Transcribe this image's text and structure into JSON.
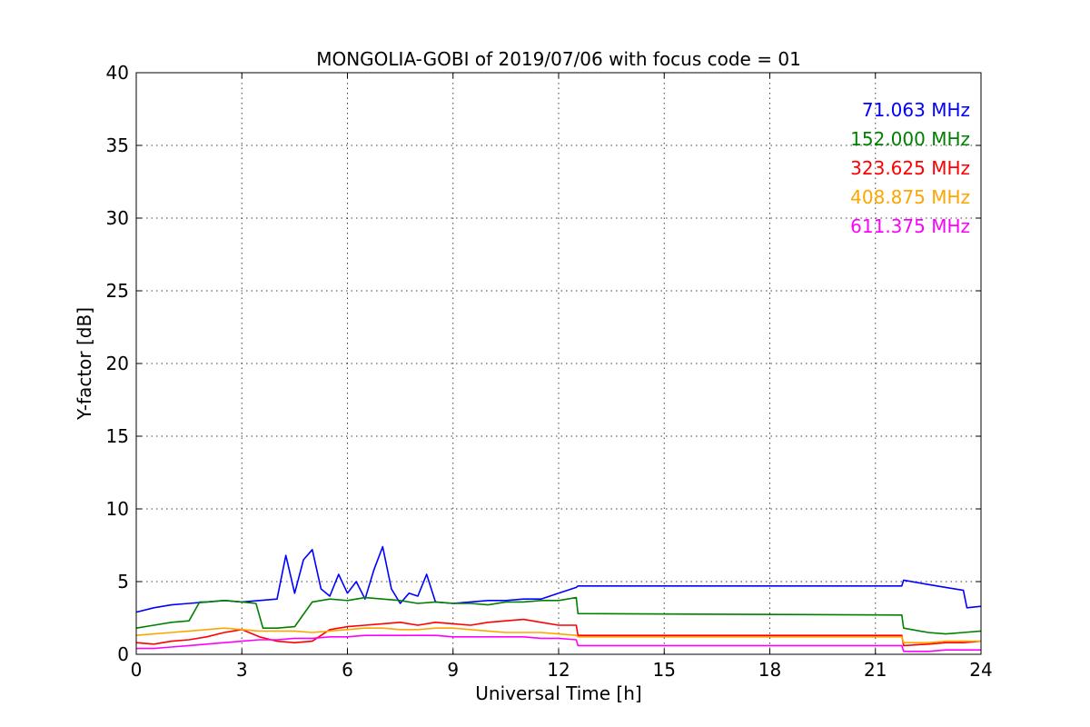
{
  "chart_data": {
    "type": "line",
    "title": "MONGOLIA-GOBI of 2019/07/06 with focus code = 01",
    "xlabel": "Universal Time [h]",
    "ylabel": "Y-factor [dB]",
    "xlim": [
      0,
      24
    ],
    "ylim": [
      0,
      40
    ],
    "xticks": [
      "0",
      "3",
      "6",
      "9",
      "12",
      "15",
      "18",
      "21",
      "24"
    ],
    "yticks": [
      "0",
      "5",
      "10",
      "15",
      "20",
      "25",
      "30",
      "35",
      "40"
    ],
    "grid": true,
    "legend_position": "top-right",
    "series": [
      {
        "name": "71.063 MHz",
        "color": "#0000ff",
        "x": [
          0,
          0.5,
          1,
          1.5,
          2,
          2.5,
          3,
          3.5,
          4,
          4.25,
          4.5,
          4.75,
          5,
          5.25,
          5.5,
          5.75,
          6,
          6.25,
          6.5,
          6.75,
          7,
          7.25,
          7.5,
          7.75,
          8,
          8.25,
          8.5,
          9,
          9.5,
          10,
          10.5,
          11,
          11.5,
          12,
          12.5,
          12.55,
          21.75,
          21.8,
          22.5,
          23,
          23.5,
          23.6,
          24
        ],
        "y": [
          2.9,
          3.2,
          3.4,
          3.5,
          3.6,
          3.7,
          3.6,
          3.7,
          3.8,
          6.8,
          4.2,
          6.5,
          7.2,
          4.5,
          4.0,
          5.5,
          4.2,
          5.0,
          3.8,
          5.8,
          7.4,
          4.5,
          3.5,
          4.2,
          4.0,
          5.5,
          3.6,
          3.5,
          3.6,
          3.7,
          3.7,
          3.8,
          3.8,
          4.2,
          4.6,
          4.7,
          4.7,
          5.1,
          4.8,
          4.6,
          4.4,
          3.2,
          3.3
        ]
      },
      {
        "name": "152.000 MHz",
        "color": "#008000",
        "x": [
          0,
          0.5,
          1,
          1.5,
          1.8,
          2,
          2.5,
          3,
          3.4,
          3.6,
          4,
          4.5,
          5,
          5.5,
          6,
          6.5,
          7,
          7.5,
          8,
          8.5,
          9,
          9.5,
          10,
          10.5,
          11,
          11.5,
          12,
          12.5,
          12.55,
          21.75,
          21.8,
          22.5,
          23,
          23.5,
          24
        ],
        "y": [
          1.8,
          2.0,
          2.2,
          2.3,
          3.6,
          3.6,
          3.7,
          3.6,
          3.5,
          1.8,
          1.8,
          1.9,
          3.6,
          3.8,
          3.7,
          3.9,
          3.8,
          3.7,
          3.5,
          3.6,
          3.5,
          3.5,
          3.4,
          3.6,
          3.6,
          3.7,
          3.7,
          3.9,
          2.8,
          2.7,
          1.8,
          1.5,
          1.4,
          1.5,
          1.6
        ]
      },
      {
        "name": "323.625 MHz",
        "color": "#ff0000",
        "x": [
          0,
          0.5,
          1,
          1.5,
          2,
          2.5,
          3,
          3.5,
          4,
          4.5,
          5,
          5.5,
          6,
          6.5,
          7,
          7.5,
          8,
          8.5,
          9,
          9.5,
          10,
          10.5,
          11,
          11.5,
          12,
          12.5,
          12.55,
          21.75,
          21.8,
          22.5,
          23,
          23.5,
          24
        ],
        "y": [
          0.8,
          0.7,
          0.9,
          1.0,
          1.2,
          1.5,
          1.7,
          1.2,
          0.9,
          0.8,
          0.9,
          1.7,
          1.9,
          2.0,
          2.1,
          2.2,
          2.0,
          2.2,
          2.1,
          2.0,
          2.2,
          2.3,
          2.4,
          2.2,
          2.0,
          2.0,
          1.3,
          1.3,
          0.6,
          0.7,
          0.8,
          0.8,
          0.9
        ]
      },
      {
        "name": "408.875 MHz",
        "color": "#ffa500",
        "x": [
          0,
          0.5,
          1,
          1.5,
          2,
          2.5,
          3,
          3.5,
          4,
          4.5,
          5,
          5.5,
          6,
          6.5,
          7,
          7.5,
          8,
          8.5,
          9,
          9.5,
          10,
          10.5,
          11,
          11.5,
          12,
          12.5,
          12.55,
          21.75,
          21.8,
          22.5,
          23,
          23.5,
          24
        ],
        "y": [
          1.3,
          1.4,
          1.5,
          1.6,
          1.7,
          1.8,
          1.7,
          1.6,
          1.6,
          1.6,
          1.5,
          1.6,
          1.7,
          1.8,
          1.8,
          1.7,
          1.7,
          1.8,
          1.8,
          1.7,
          1.6,
          1.5,
          1.5,
          1.5,
          1.4,
          1.3,
          1.2,
          1.2,
          0.8,
          0.8,
          0.9,
          0.9,
          0.9
        ]
      },
      {
        "name": "611.375 MHz",
        "color": "#ff00ff",
        "x": [
          0,
          0.5,
          1,
          1.5,
          2,
          2.5,
          3,
          3.5,
          4,
          4.5,
          5,
          5.5,
          6,
          6.5,
          7,
          7.5,
          8,
          8.5,
          9,
          9.5,
          10,
          10.5,
          11,
          11.5,
          12,
          12.5,
          12.55,
          21.75,
          21.8,
          22.5,
          23,
          23.5,
          24
        ],
        "y": [
          0.4,
          0.4,
          0.5,
          0.6,
          0.7,
          0.8,
          0.9,
          1.0,
          1.0,
          1.1,
          1.1,
          1.2,
          1.2,
          1.3,
          1.3,
          1.3,
          1.3,
          1.3,
          1.2,
          1.2,
          1.2,
          1.2,
          1.2,
          1.1,
          1.1,
          1.0,
          0.6,
          0.6,
          0.2,
          0.2,
          0.3,
          0.3,
          0.3
        ]
      }
    ]
  }
}
